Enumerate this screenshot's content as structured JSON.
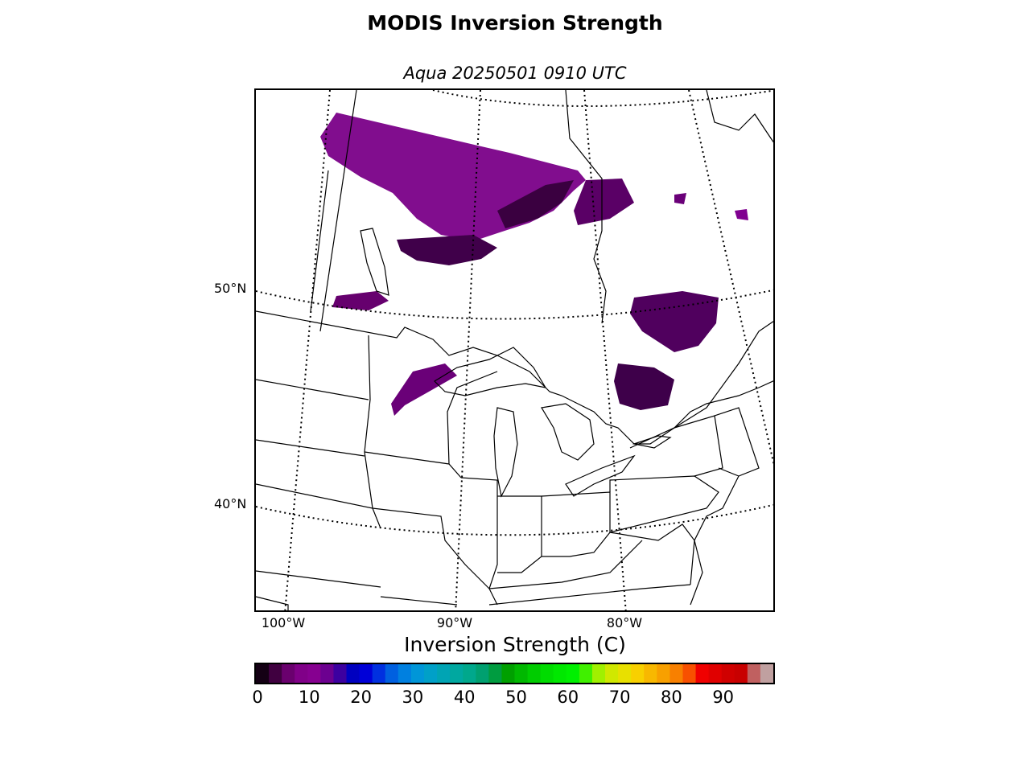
{
  "title": "MODIS Inversion Strength",
  "subtitle": "Aqua 20250501 0910 UTC",
  "map": {
    "lat_labels": [
      "50°N",
      "40°N"
    ],
    "lon_labels": [
      "100°W",
      "90°W",
      "80°W"
    ]
  },
  "colorbar": {
    "label": "Inversion Strength (C)",
    "ticks": [
      "0",
      "10",
      "20",
      "30",
      "40",
      "50",
      "60",
      "70",
      "80",
      "90"
    ],
    "range": [
      0,
      100
    ],
    "colors": [
      "#140014",
      "#400040",
      "#6a006e",
      "#800088",
      "#860090",
      "#6c0090",
      "#3c00a0",
      "#0000c0",
      "#0000d8",
      "#0030e0",
      "#0060e0",
      "#0080e0",
      "#0096d8",
      "#00a0c8",
      "#00a4b4",
      "#00a8a0",
      "#00a88c",
      "#00a070",
      "#009c40",
      "#00a000",
      "#00b800",
      "#00cc00",
      "#00dc00",
      "#00e800",
      "#00f000",
      "#40f000",
      "#a0f000",
      "#d0e800",
      "#e8e000",
      "#f8d000",
      "#f8b800",
      "#f8a000",
      "#f88000",
      "#f85000",
      "#f00000",
      "#e00000",
      "#d00000",
      "#c80000",
      "#c06060",
      "#c0a0a0"
    ]
  }
}
